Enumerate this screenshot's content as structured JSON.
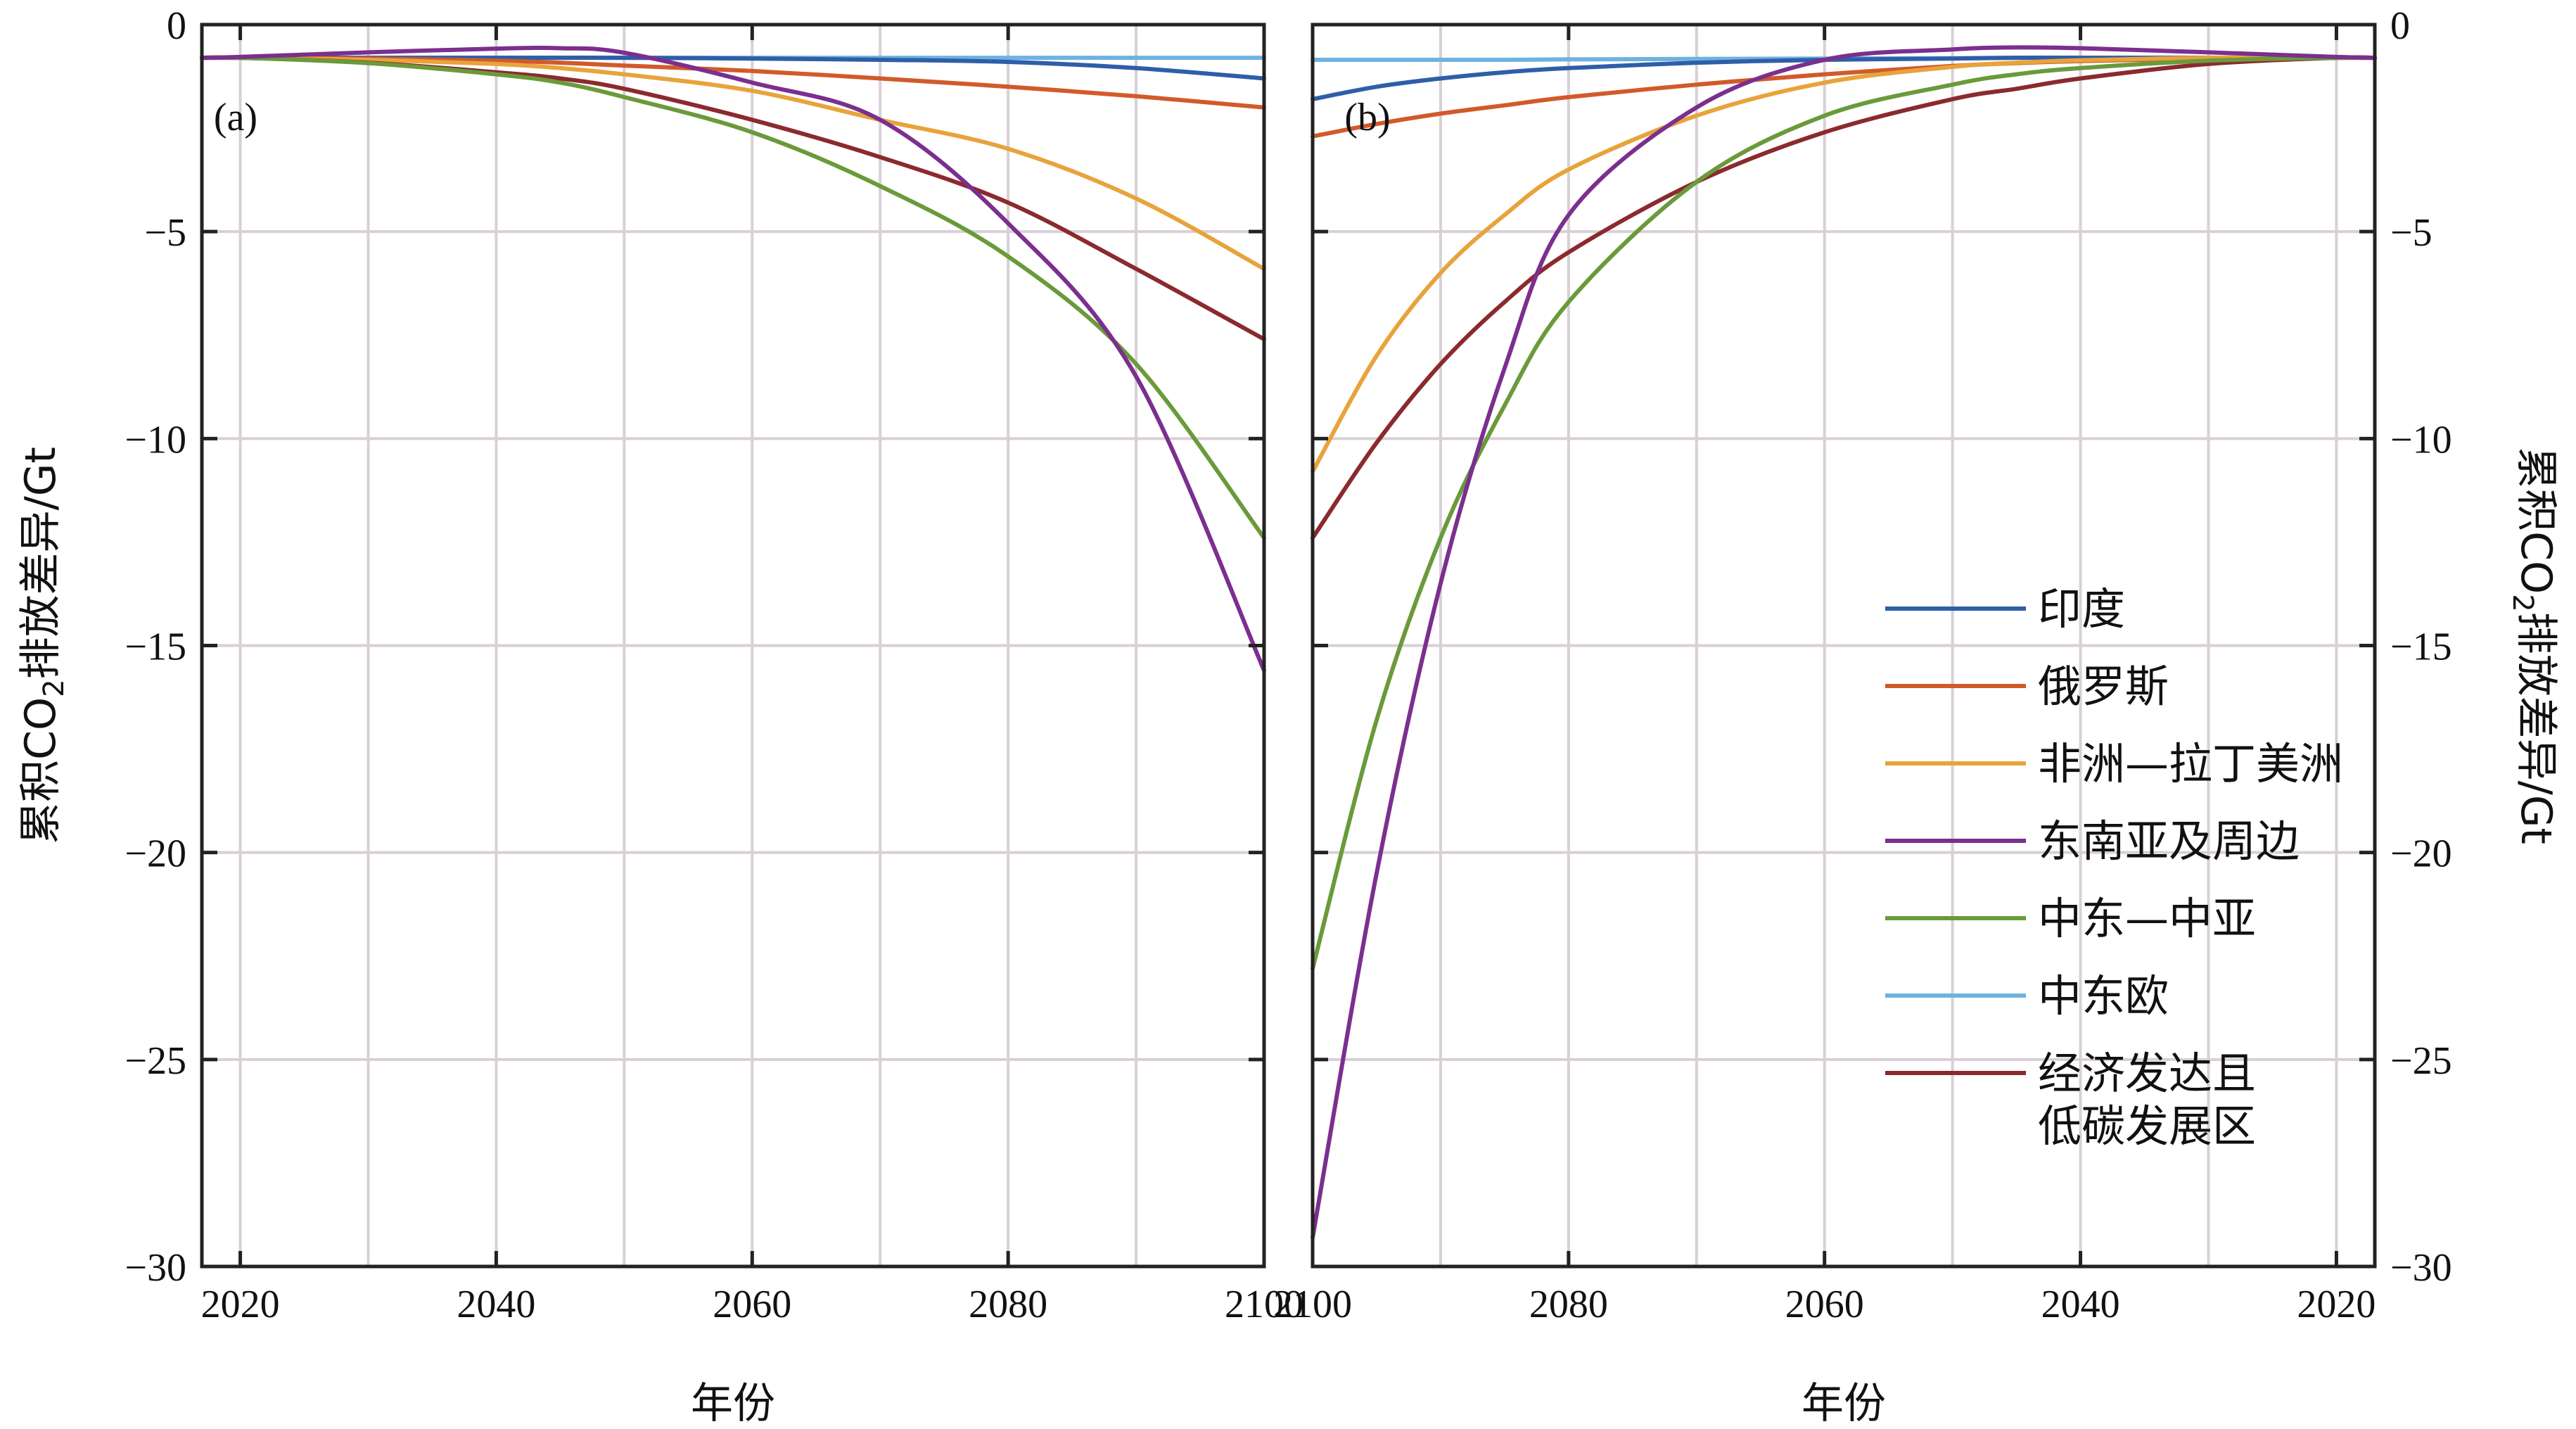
{
  "chart_data": [
    {
      "panel_label": "(a)",
      "type": "line",
      "x_direction": "ascending",
      "xlabel": "年份",
      "ylabel": "累积CO2排放差异/Gt",
      "ylabel_parts": {
        "pre": "累积CO",
        "sub": "2",
        "post": "排放差异/Gt"
      },
      "xlim": [
        2017,
        2100
      ],
      "ylim": [
        -30,
        0
      ],
      "x_ticks": [
        2020,
        2040,
        2060,
        2080,
        2100
      ],
      "x_tick_labels": [
        "2020",
        "2040",
        "2060",
        "2080",
        "2100"
      ],
      "y_ticks": [
        0,
        -5,
        -10,
        -15,
        -20,
        -25,
        -30
      ],
      "y_tick_labels": [
        "0",
        "−5",
        "−10",
        "−15",
        "−20",
        "−25",
        "−30"
      ],
      "grid": true,
      "x": [
        2017,
        2020,
        2030,
        2040,
        2045,
        2050,
        2060,
        2070,
        2080,
        2090,
        2100
      ],
      "series": [
        {
          "name": "印度",
          "color": "#2f5ea8",
          "values": [
            -0.8,
            -0.8,
            -0.8,
            -0.8,
            -0.8,
            -0.8,
            -0.82,
            -0.85,
            -0.9,
            -1.05,
            -1.3
          ]
        },
        {
          "name": "俄罗斯",
          "color": "#d25a2a",
          "values": [
            -0.8,
            -0.8,
            -0.82,
            -0.87,
            -0.92,
            -0.99,
            -1.12,
            -1.3,
            -1.5,
            -1.73,
            -2.0
          ]
        },
        {
          "name": "非洲—拉丁美洲",
          "color": "#e8a33c",
          "values": [
            -0.8,
            -0.8,
            -0.85,
            -0.95,
            -1.05,
            -1.2,
            -1.6,
            -2.3,
            -3.0,
            -4.2,
            -5.9
          ]
        },
        {
          "name": "东南亚及周边",
          "color": "#7b2f8e",
          "values": [
            -0.8,
            -0.78,
            -0.67,
            -0.58,
            -0.57,
            -0.68,
            -1.4,
            -2.3,
            -4.8,
            -8.5,
            -15.6
          ]
        },
        {
          "name": "中东—中亚",
          "color": "#6a9a3a",
          "values": [
            -0.8,
            -0.8,
            -0.93,
            -1.2,
            -1.4,
            -1.75,
            -2.6,
            -3.9,
            -5.6,
            -8.2,
            -12.4
          ]
        },
        {
          "name": "中东欧",
          "color": "#6fb2e0",
          "values": [
            -0.8,
            -0.8,
            -0.8,
            -0.8,
            -0.8,
            -0.8,
            -0.8,
            -0.8,
            -0.8,
            -0.8,
            -0.8
          ]
        },
        {
          "name": "经济发达且低碳发展区",
          "color": "#8b2a2e",
          "values": [
            -0.8,
            -0.8,
            -0.92,
            -1.15,
            -1.3,
            -1.55,
            -2.3,
            -3.2,
            -4.3,
            -5.9,
            -7.6
          ]
        }
      ]
    },
    {
      "panel_label": "(b)",
      "type": "line",
      "x_direction": "descending",
      "xlabel": "年份",
      "ylabel": "累积CO2排放差异/Gt",
      "ylabel_parts": {
        "pre": "累积CO",
        "sub": "2",
        "post": "排放差异/Gt"
      },
      "xlim": [
        2100,
        2017
      ],
      "ylim": [
        -30,
        0
      ],
      "x_ticks": [
        2100,
        2080,
        2060,
        2040,
        2020
      ],
      "x_tick_labels": [
        "2100",
        "2080",
        "2060",
        "2040",
        "2020"
      ],
      "y_ticks": [
        0,
        -5,
        -10,
        -15,
        -20,
        -25,
        -30
      ],
      "y_tick_labels": [
        "0",
        "−5",
        "−10",
        "−15",
        "−20",
        "−25",
        "−30"
      ],
      "grid": true,
      "x": [
        2100,
        2095,
        2090,
        2085,
        2080,
        2070,
        2060,
        2050,
        2045,
        2040,
        2030,
        2020,
        2017
      ],
      "series": [
        {
          "name": "印度",
          "color": "#2f5ea8",
          "values": [
            -1.8,
            -1.5,
            -1.3,
            -1.15,
            -1.05,
            -0.92,
            -0.85,
            -0.82,
            -0.8,
            -0.8,
            -0.8,
            -0.8,
            -0.8
          ]
        },
        {
          "name": "俄罗斯",
          "color": "#d25a2a",
          "values": [
            -2.7,
            -2.4,
            -2.15,
            -1.95,
            -1.75,
            -1.45,
            -1.2,
            -1.0,
            -0.93,
            -0.88,
            -0.82,
            -0.8,
            -0.8
          ]
        },
        {
          "name": "非洲—拉丁美洲",
          "color": "#e8a33c",
          "values": [
            -10.8,
            -8.0,
            -6.0,
            -4.6,
            -3.5,
            -2.2,
            -1.4,
            -1.02,
            -0.92,
            -0.86,
            -0.8,
            -0.8,
            -0.8
          ]
        },
        {
          "name": "东南亚及周边",
          "color": "#7b2f8e",
          "values": [
            -29.3,
            -20.5,
            -13.5,
            -8.3,
            -4.6,
            -2.0,
            -0.85,
            -0.6,
            -0.55,
            -0.57,
            -0.67,
            -0.78,
            -0.8
          ]
        },
        {
          "name": "中东—中亚",
          "color": "#6a9a3a",
          "values": [
            -22.8,
            -16.8,
            -12.4,
            -9.2,
            -6.7,
            -3.8,
            -2.2,
            -1.45,
            -1.2,
            -1.05,
            -0.87,
            -0.8,
            -0.8
          ]
        },
        {
          "name": "中东欧",
          "color": "#6fb2e0",
          "values": [
            -0.85,
            -0.85,
            -0.85,
            -0.85,
            -0.84,
            -0.83,
            -0.82,
            -0.81,
            -0.8,
            -0.8,
            -0.8,
            -0.8,
            -0.8
          ]
        },
        {
          "name": "经济发达且低碳发展区",
          "color": "#8b2a2e",
          "values": [
            -12.4,
            -10.1,
            -8.2,
            -6.7,
            -5.5,
            -3.8,
            -2.6,
            -1.8,
            -1.55,
            -1.3,
            -0.95,
            -0.8,
            -0.8
          ]
        }
      ]
    }
  ],
  "legend": {
    "items": [
      {
        "label": "印度",
        "color": "#2f5ea8"
      },
      {
        "label": "俄罗斯",
        "color": "#d25a2a"
      },
      {
        "label": "非洲—拉丁美洲",
        "color": "#e8a33c"
      },
      {
        "label": "东南亚及周边",
        "color": "#7b2f8e"
      },
      {
        "label": "中东—中亚",
        "color": "#6a9a3a"
      },
      {
        "label": "中东欧",
        "color": "#6fb2e0"
      },
      {
        "label_lines": [
          "经济发达且",
          "低碳发展区"
        ],
        "label": "经济发达且低碳发展区",
        "color": "#8b2a2e"
      }
    ]
  }
}
